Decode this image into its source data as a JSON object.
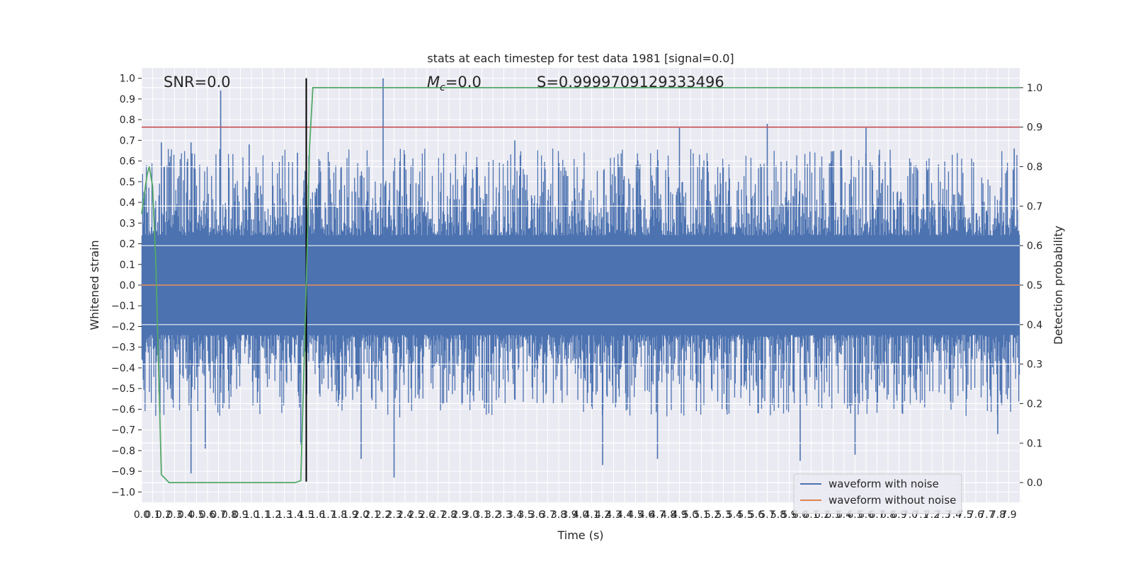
{
  "chart_data": {
    "type": "line",
    "title": "stats at each timestep for test data 1981 [signal=0.0]",
    "xlabel": "Time (s)",
    "ylabel": "Whitened strain",
    "y2label": "Detection probability",
    "xlim": [
      0.0,
      8.0
    ],
    "ylim": [
      -1.05,
      1.05
    ],
    "y2lim": [
      -0.05,
      1.05
    ],
    "grid": true,
    "legend_position": "bottom-right",
    "annotations": {
      "snr": "SNR=0.0",
      "mc_symbol": "M",
      "mc_sub": "c",
      "mc_value": "=0.0",
      "s": "S=0.9999709129333496"
    },
    "x_ticks": [
      "0.0",
      "0.1",
      "0.2",
      "0.3",
      "0.4",
      "0.5",
      "0.6",
      "0.7",
      "0.8",
      "0.9",
      "1.0",
      "1.1",
      "1.2",
      "1.3",
      "1.4",
      "1.5",
      "1.6",
      "1.7",
      "1.8",
      "1.9",
      "2.0",
      "2.1",
      "2.2",
      "2.3",
      "2.4",
      "2.5",
      "2.6",
      "2.7",
      "2.8",
      "2.9",
      "3.0",
      "3.1",
      "3.2",
      "3.3",
      "3.4",
      "3.5",
      "3.6",
      "3.7",
      "3.8",
      "3.9",
      "4.0",
      "4.1",
      "4.2",
      "4.3",
      "4.4",
      "4.5",
      "4.6",
      "4.7",
      "4.8",
      "4.9",
      "5.0",
      "5.1",
      "5.2",
      "5.3",
      "5.4",
      "5.5",
      "5.6",
      "5.7",
      "5.8",
      "5.9",
      "6.0",
      "6.1",
      "6.2",
      "6.3",
      "6.4",
      "6.5",
      "6.6",
      "6.7",
      "6.8",
      "6.9",
      "7.0",
      "7.1",
      "7.2",
      "7.3",
      "7.4",
      "7.5",
      "7.6",
      "7.7",
      "7.8",
      "7.9"
    ],
    "y_ticks": [
      "1.0",
      "0.9",
      "0.8",
      "0.7",
      "0.6",
      "0.5",
      "0.4",
      "0.3",
      "0.2",
      "0.1",
      "0.0",
      "−0.1",
      "−0.2",
      "−0.3",
      "−0.4",
      "−0.5",
      "−0.6",
      "−0.7",
      "−0.8",
      "−0.9",
      "−1.0"
    ],
    "y2_ticks": [
      "1.0",
      "0.9",
      "0.8",
      "0.7",
      "0.6",
      "0.5",
      "0.4",
      "0.3",
      "0.2",
      "0.1",
      "0.0"
    ],
    "series": [
      {
        "name": "waveform with noise",
        "color": "#4c72b0",
        "style": "dense noise band, approx ±0.25 typical envelope with spikes",
        "spikes_top": [
          {
            "x": 0.02,
            "y": 0.45
          },
          {
            "x": 0.18,
            "y": 0.69
          },
          {
            "x": 0.45,
            "y": 0.69
          },
          {
            "x": 0.72,
            "y": 0.94
          },
          {
            "x": 0.98,
            "y": 0.68
          },
          {
            "x": 1.42,
            "y": 0.64
          },
          {
            "x": 2.2,
            "y": 1.0
          },
          {
            "x": 3.4,
            "y": 0.7
          },
          {
            "x": 4.9,
            "y": 0.76
          },
          {
            "x": 5.7,
            "y": 0.78
          },
          {
            "x": 6.6,
            "y": 0.76
          },
          {
            "x": 7.95,
            "y": 0.66
          }
        ],
        "spikes_bottom": [
          {
            "x": 0.45,
            "y": -0.91
          },
          {
            "x": 0.58,
            "y": -0.79
          },
          {
            "x": 1.45,
            "y": -0.77
          },
          {
            "x": 2.0,
            "y": -0.84
          },
          {
            "x": 2.3,
            "y": -0.93
          },
          {
            "x": 4.2,
            "y": -0.87
          },
          {
            "x": 4.7,
            "y": -0.84
          },
          {
            "x": 6.0,
            "y": -0.85
          },
          {
            "x": 6.5,
            "y": -0.82
          },
          {
            "x": 7.8,
            "y": -0.72
          }
        ]
      },
      {
        "name": "waveform without noise",
        "color": "#dd8452",
        "x": [
          0.0,
          8.0
        ],
        "y": [
          0.0,
          0.0
        ]
      },
      {
        "name": "",
        "axis": "right",
        "color": "#55a868",
        "x": [
          0.0,
          0.05,
          0.07,
          0.1,
          0.13,
          0.18,
          0.25,
          1.4,
          1.45,
          1.5,
          1.53,
          1.56,
          8.0
        ],
        "y": [
          0.68,
          0.78,
          0.8,
          0.75,
          0.55,
          0.02,
          0.0,
          0.0,
          0.005,
          0.5,
          0.85,
          1.0,
          1.0
        ]
      }
    ],
    "hlines": [
      {
        "axis": "right",
        "y": 0.9,
        "color": "#c44e52"
      }
    ],
    "vlines": [
      {
        "x": 1.5,
        "y_range": [
          -0.95,
          1.0
        ],
        "color": "#000000"
      }
    ]
  },
  "legend": {
    "items": [
      {
        "label": "waveform with noise",
        "color": "#4c72b0"
      },
      {
        "label": "waveform without noise",
        "color": "#dd8452"
      }
    ]
  }
}
